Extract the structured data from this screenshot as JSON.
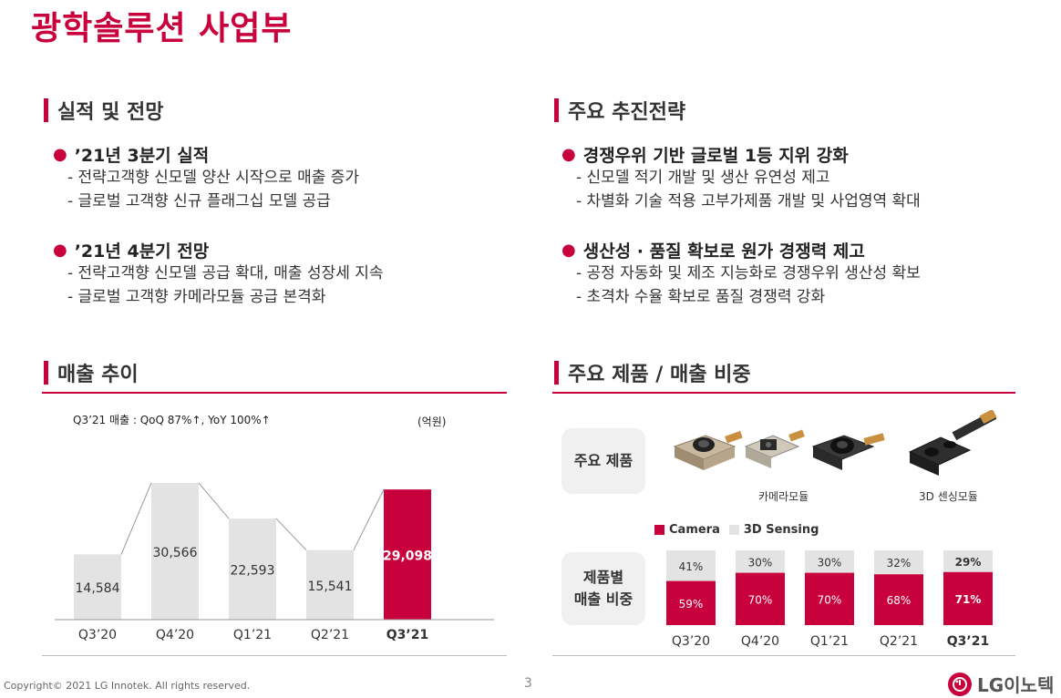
{
  "title": "광학솔루션 사업부",
  "left_top": {
    "header": "실적 및 전망",
    "groups": [
      {
        "bullet": "’21년 3분기 실적",
        "items": [
          "- 전략고객향 신모델 양산 시작으로 매출 증가",
          "- 글로벌 고객향 신규 플래그십 모델 공급"
        ]
      },
      {
        "bullet": "’21년 4분기 전망",
        "items": [
          "- 전략고객향 신모델 공급 확대, 매출 성장세 지속",
          "- 글로벌 고객향 카메라모듈 공급 본격화"
        ]
      }
    ]
  },
  "right_top": {
    "header": "주요 추진전략",
    "groups": [
      {
        "bullet": "경쟁우위 기반 글로벌 1등 지위 강화",
        "items": [
          "- 신모델 적기 개발 및 생산 유연성 제고",
          "- 차별화 기술 적용 고부가제품 개발 및 사업영역 확대"
        ]
      },
      {
        "bullet": "생산성 · 품질 확보로 원가 경쟁력 제고",
        "items": [
          "- 공정 자동화 및 제조 지능화로 경쟁우위 생산성 확보",
          "- 초격차 수율 확보로 품질 경쟁력 강화"
        ]
      }
    ]
  },
  "sales": {
    "header": "매출 추이",
    "note": "Q3’21 매출 : QoQ 87%↑, YoY 100%↑",
    "unit": "(억원)"
  },
  "products": {
    "header": "주요 제품 / 매출 비중",
    "main_label": "주요 제품",
    "camera_label": "카메라모듈",
    "sensing_label": "3D 센싱모듈",
    "share_label_1": "제품별",
    "share_label_2": "매출 비중"
  },
  "chart_data": [
    {
      "type": "bar",
      "categories": [
        "Q3’20",
        "Q4’20",
        "Q1’21",
        "Q2’21",
        "Q3’21"
      ],
      "values": [
        14584,
        30566,
        22593,
        15541,
        29098
      ],
      "labels": [
        "14,584",
        "30,566",
        "22,593",
        "15,541",
        "29,098"
      ],
      "ylim": [
        0,
        33000
      ],
      "highlight_index": 4,
      "colors": {
        "base": "#e3e3e3",
        "highlight": "#c8003c",
        "connector": "#9a9a9a"
      }
    },
    {
      "type": "bar",
      "stacked": true,
      "normalized": true,
      "categories": [
        "Q3’20",
        "Q4’20",
        "Q1’21",
        "Q2’21",
        "Q3’21"
      ],
      "series": [
        {
          "name": "Camera",
          "values": [
            59,
            70,
            70,
            68,
            71
          ],
          "labels": [
            "59%",
            "70%",
            "70%",
            "68%",
            "71%"
          ],
          "color": "#c8003c"
        },
        {
          "name": "3D Sensing",
          "values": [
            41,
            30,
            30,
            32,
            29
          ],
          "labels": [
            "41%",
            "30%",
            "30%",
            "32%",
            "29%"
          ],
          "color": "#e3e3e3"
        }
      ],
      "highlight_index": 4,
      "legend": "top-left"
    }
  ],
  "footer": {
    "copyright": "Copyright© 2021 LG Innotek. All rights reserved.",
    "page": "3",
    "logo": "LG이노텍"
  }
}
